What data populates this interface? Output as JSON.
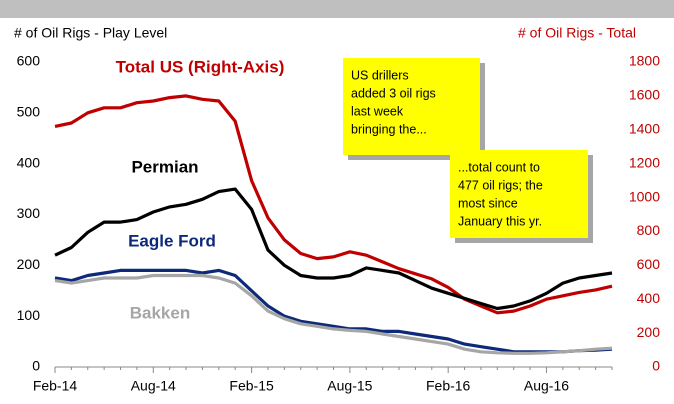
{
  "chart_data": {
    "type": "line",
    "y_label": "# of Oil Rigs -   Play Level",
    "y2_label": "# of Oil Rigs -   Total",
    "categories": [
      "Feb-14",
      null,
      null,
      null,
      null,
      null,
      "Aug-14",
      null,
      null,
      null,
      null,
      null,
      "Feb-15",
      null,
      null,
      null,
      null,
      null,
      "Aug-15",
      null,
      null,
      null,
      null,
      null,
      "Feb-16",
      null,
      null,
      null,
      null,
      null,
      "Aug-16",
      null,
      null,
      null,
      null
    ],
    "ylim": [
      0,
      600
    ],
    "yticks": [
      0,
      100,
      200,
      300,
      400,
      500,
      600
    ],
    "y2lim": [
      0,
      1800
    ],
    "y2ticks": [
      0,
      200,
      400,
      600,
      800,
      1000,
      1200,
      1400,
      1600,
      1800
    ],
    "series": [
      {
        "name": "Total US (Right-Axis)",
        "color": "#c00000",
        "axis": "y2",
        "values": [
          1420,
          1440,
          1500,
          1530,
          1530,
          1560,
          1570,
          1590,
          1600,
          1580,
          1570,
          1450,
          1100,
          880,
          750,
          670,
          640,
          650,
          680,
          660,
          620,
          580,
          550,
          520,
          470,
          400,
          360,
          320,
          330,
          360,
          400,
          420,
          440,
          455,
          477
        ]
      },
      {
        "name": "Permian",
        "color": "#000000",
        "values": [
          220,
          235,
          265,
          285,
          285,
          290,
          305,
          315,
          320,
          330,
          345,
          350,
          310,
          230,
          200,
          180,
          175,
          175,
          180,
          195,
          190,
          185,
          170,
          155,
          145,
          135,
          125,
          115,
          120,
          130,
          145,
          165,
          175,
          180,
          185
        ]
      },
      {
        "name": "Eagle Ford",
        "color": "#0d2a7a",
        "values": [
          175,
          170,
          180,
          185,
          190,
          190,
          190,
          190,
          190,
          185,
          190,
          180,
          150,
          120,
          100,
          90,
          85,
          80,
          75,
          75,
          70,
          70,
          65,
          60,
          55,
          45,
          40,
          35,
          30,
          30,
          30,
          30,
          32,
          33,
          35
        ]
      },
      {
        "name": "Bakken",
        "color": "#a6a6a6",
        "values": [
          170,
          165,
          170,
          175,
          175,
          175,
          180,
          180,
          180,
          180,
          175,
          165,
          140,
          110,
          95,
          85,
          80,
          75,
          72,
          70,
          65,
          60,
          55,
          50,
          45,
          35,
          30,
          28,
          27,
          27,
          28,
          30,
          32,
          35,
          37
        ]
      }
    ],
    "annotations": [
      {
        "lines": [
          "US drillers",
          "added 3 oil rigs",
          "last week",
          "bringing the..."
        ]
      },
      {
        "lines": [
          "...total count to",
          "477 oil rigs; the",
          "most since",
          "January this yr."
        ]
      }
    ]
  }
}
